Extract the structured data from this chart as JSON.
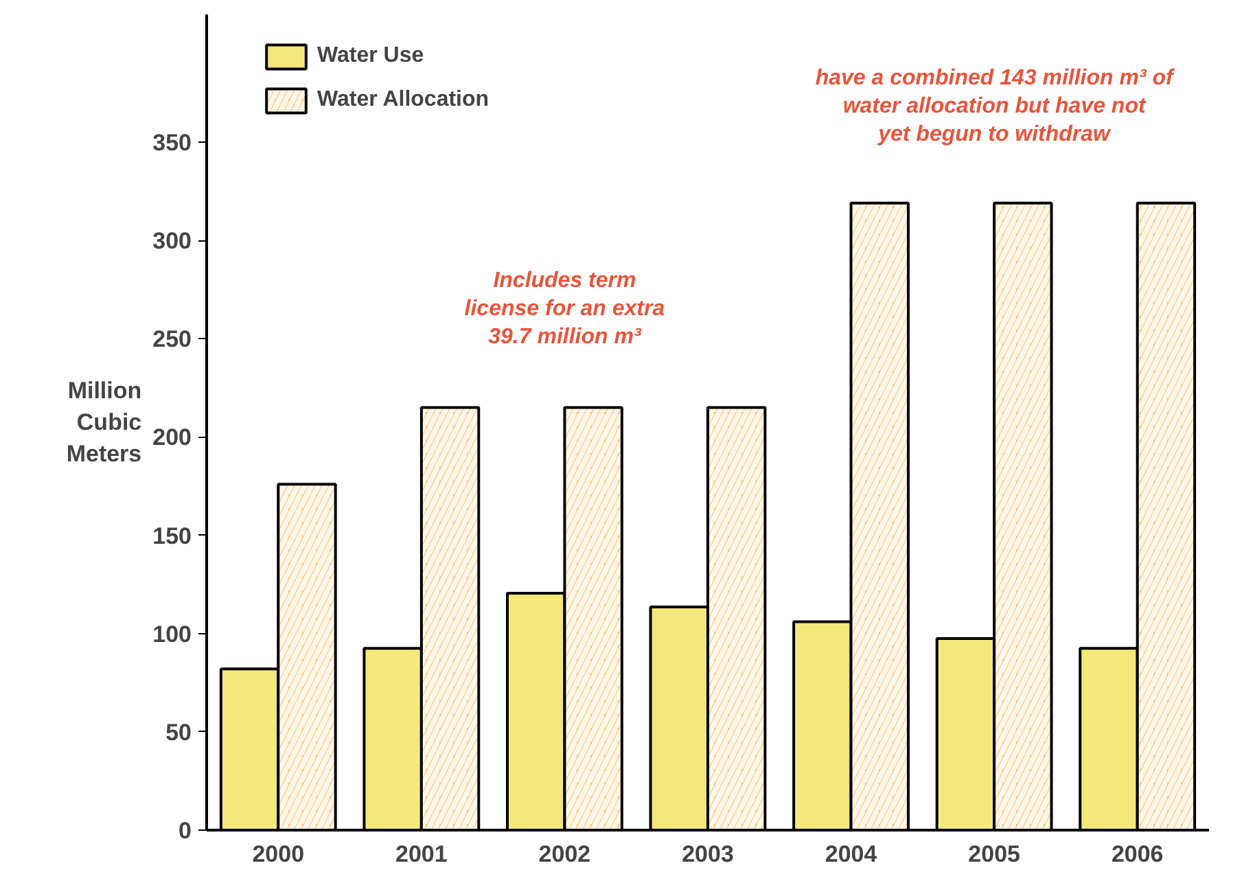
{
  "chart_data": {
    "type": "bar",
    "ylabel": "Million Cubic Meters",
    "categories": [
      "2000",
      "2001",
      "2002",
      "2003",
      "2004",
      "2005",
      "2006"
    ],
    "series": [
      {
        "name": "Water Use",
        "color": "#f5e87a",
        "values": [
          82,
          92.5,
          120.5,
          113.5,
          106,
          97.5,
          92.5
        ]
      },
      {
        "name": "Water Allocation",
        "color": "#f7c27e",
        "values": [
          176,
          215,
          215,
          215,
          319,
          319,
          319
        ]
      }
    ],
    "ylim": [
      0,
      415
    ],
    "yticks": [
      0,
      50,
      100,
      150,
      200,
      250,
      300,
      350
    ],
    "grid": false,
    "legend": "top left",
    "annotations": [
      "Includes term\nlicense for an extra\n39.7 million m³",
      "have a combined 143 million m³ of\nwater allocation but have not\nyet begun to withdraw"
    ]
  }
}
